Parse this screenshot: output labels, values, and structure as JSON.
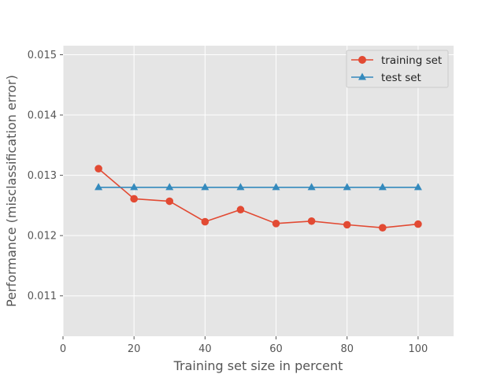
{
  "chart_data": {
    "type": "line",
    "xlabel": "Training set size in percent",
    "ylabel": "Performance (misclassification error)",
    "xlim": [
      0,
      110
    ],
    "ylim": [
      0.01033,
      0.01515
    ],
    "x_ticks": [
      0,
      20,
      40,
      60,
      80,
      100
    ],
    "y_ticks": [
      0.011,
      0.012,
      0.013,
      0.014,
      0.015
    ],
    "x_tick_labels": [
      "0",
      "20",
      "40",
      "60",
      "80",
      "100"
    ],
    "y_tick_labels": [
      "0.011",
      "0.012",
      "0.013",
      "0.014",
      "0.015"
    ],
    "grid": true,
    "legend_position": "top-right",
    "x": [
      10,
      20,
      30,
      40,
      50,
      60,
      70,
      80,
      90,
      100
    ],
    "series": [
      {
        "name": "training set",
        "marker": "circle",
        "color": "#E24A33",
        "values": [
          0.01311,
          0.01261,
          0.01257,
          0.01223,
          0.01243,
          0.0122,
          0.01224,
          0.01218,
          0.01213,
          0.01219
        ]
      },
      {
        "name": "test set",
        "marker": "triangle",
        "color": "#348ABD",
        "values": [
          0.0128,
          0.0128,
          0.0128,
          0.0128,
          0.0128,
          0.0128,
          0.0128,
          0.0128,
          0.0128,
          0.0128
        ]
      }
    ]
  }
}
